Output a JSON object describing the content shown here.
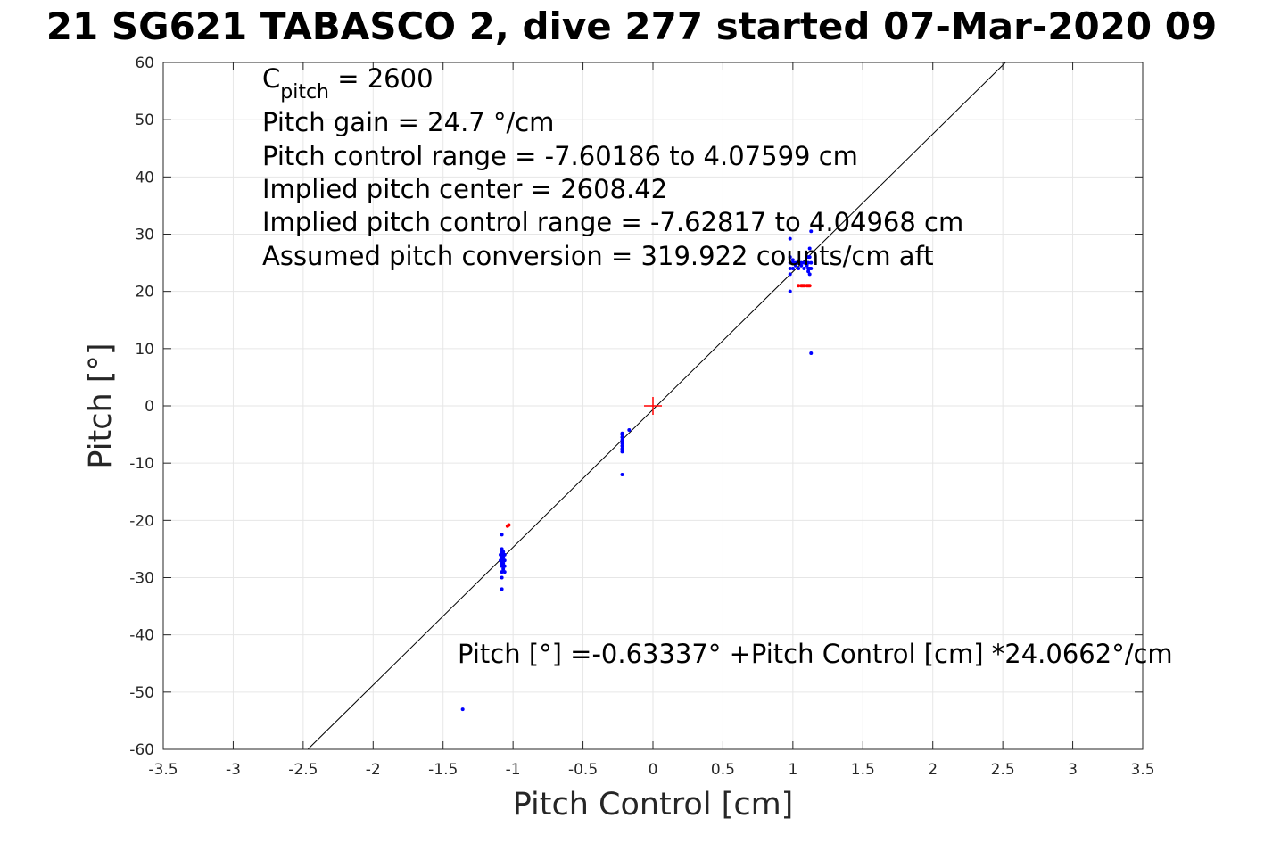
{
  "chart_data": {
    "type": "scatter",
    "title": "21 SG621 TABASCO 2, dive 277 started 07-Mar-2020 09",
    "xlabel": "Pitch Control [cm]",
    "ylabel": "Pitch [°]",
    "xlim": [
      -3.5,
      3.5
    ],
    "ylim": [
      -60,
      60
    ],
    "x_ticks": [
      "-3.5",
      "-3",
      "-2.5",
      "-2",
      "-1.5",
      "-1",
      "-0.5",
      "0",
      "0.5",
      "1",
      "1.5",
      "2",
      "2.5",
      "3",
      "3.5"
    ],
    "y_ticks": [
      "60",
      "50",
      "40",
      "30",
      "20",
      "10",
      "0",
      "-10",
      "-20",
      "-30",
      "-40",
      "-50",
      "-60"
    ],
    "grid": true,
    "annotations": {
      "c_pitch": {
        "base": "C",
        "subscript": "pitch",
        "rest": " = 2600"
      },
      "lines": [
        "Pitch gain = 24.7 °/cm",
        "Pitch control range = -7.60186 to 4.07599 cm",
        "Implied pitch center = 2608.42",
        "Implied pitch control range = -7.62817 to 4.04968 cm",
        "Assumed pitch conversion = 319.922 counts/cm aft"
      ],
      "fit_equation": "Pitch [°] =-0.63337° +Pitch Control [cm] *24.0662°/cm"
    },
    "fit_line": {
      "intercept": -0.63337,
      "slope": 24.0662,
      "color": "#000000"
    },
    "center_marker": {
      "x": 0,
      "y": 0,
      "color": "#ff0000"
    },
    "series": [
      {
        "color": "#0000ff",
        "points": [
          [
            -1.36,
            -53
          ],
          [
            -1.08,
            -32
          ],
          [
            -1.08,
            -30
          ],
          [
            -1.08,
            -29
          ],
          [
            -1.08,
            -28
          ],
          [
            -1.08,
            -27.5
          ],
          [
            -1.08,
            -27
          ],
          [
            -1.08,
            -26.5
          ],
          [
            -1.08,
            -26
          ],
          [
            -1.08,
            -25.5
          ],
          [
            -1.08,
            -25
          ],
          [
            -1.08,
            -22.5
          ],
          [
            -1.06,
            -29
          ],
          [
            -1.06,
            -28
          ],
          [
            -1.06,
            -27
          ],
          [
            -1.06,
            -26
          ],
          [
            -1.07,
            -28.5
          ],
          [
            -1.07,
            -27.5
          ],
          [
            -1.07,
            -26.5
          ],
          [
            -1.07,
            -25.5
          ],
          [
            -1.09,
            -27
          ],
          [
            -1.09,
            -26
          ],
          [
            -0.22,
            -12
          ],
          [
            -0.22,
            -8
          ],
          [
            -0.22,
            -7.5
          ],
          [
            -0.22,
            -7
          ],
          [
            -0.22,
            -6.5
          ],
          [
            -0.22,
            -6
          ],
          [
            -0.22,
            -5.5
          ],
          [
            -0.22,
            -5
          ],
          [
            -0.22,
            -4.8
          ],
          [
            -0.17,
            -4.2
          ],
          [
            0.98,
            20
          ],
          [
            0.98,
            23
          ],
          [
            0.98,
            24
          ],
          [
            0.98,
            25
          ],
          [
            0.98,
            26
          ],
          [
            0.98,
            29.2
          ],
          [
            1.0,
            24
          ],
          [
            1.0,
            25
          ],
          [
            1.0,
            25.5
          ],
          [
            1.02,
            24.5
          ],
          [
            1.02,
            25
          ],
          [
            1.04,
            24
          ],
          [
            1.04,
            25
          ],
          [
            1.06,
            24.5
          ],
          [
            1.06,
            25
          ],
          [
            1.08,
            24
          ],
          [
            1.08,
            25
          ],
          [
            1.1,
            24.5
          ],
          [
            1.1,
            25
          ],
          [
            1.11,
            23.5
          ],
          [
            1.11,
            24
          ],
          [
            1.11,
            25
          ],
          [
            1.11,
            26
          ],
          [
            1.12,
            23
          ],
          [
            1.12,
            24
          ],
          [
            1.12,
            26
          ],
          [
            1.12,
            27.5
          ],
          [
            1.13,
            9.2
          ],
          [
            1.13,
            24
          ],
          [
            1.13,
            25
          ],
          [
            1.13,
            30.5
          ]
        ]
      },
      {
        "color": "#ff0000",
        "points": [
          [
            -1.04,
            -21
          ],
          [
            -1.03,
            -20.8
          ],
          [
            1.04,
            21
          ],
          [
            1.06,
            21
          ],
          [
            1.07,
            21
          ],
          [
            1.08,
            21
          ],
          [
            1.1,
            21
          ],
          [
            1.11,
            21
          ],
          [
            1.12,
            21
          ]
        ]
      }
    ]
  }
}
